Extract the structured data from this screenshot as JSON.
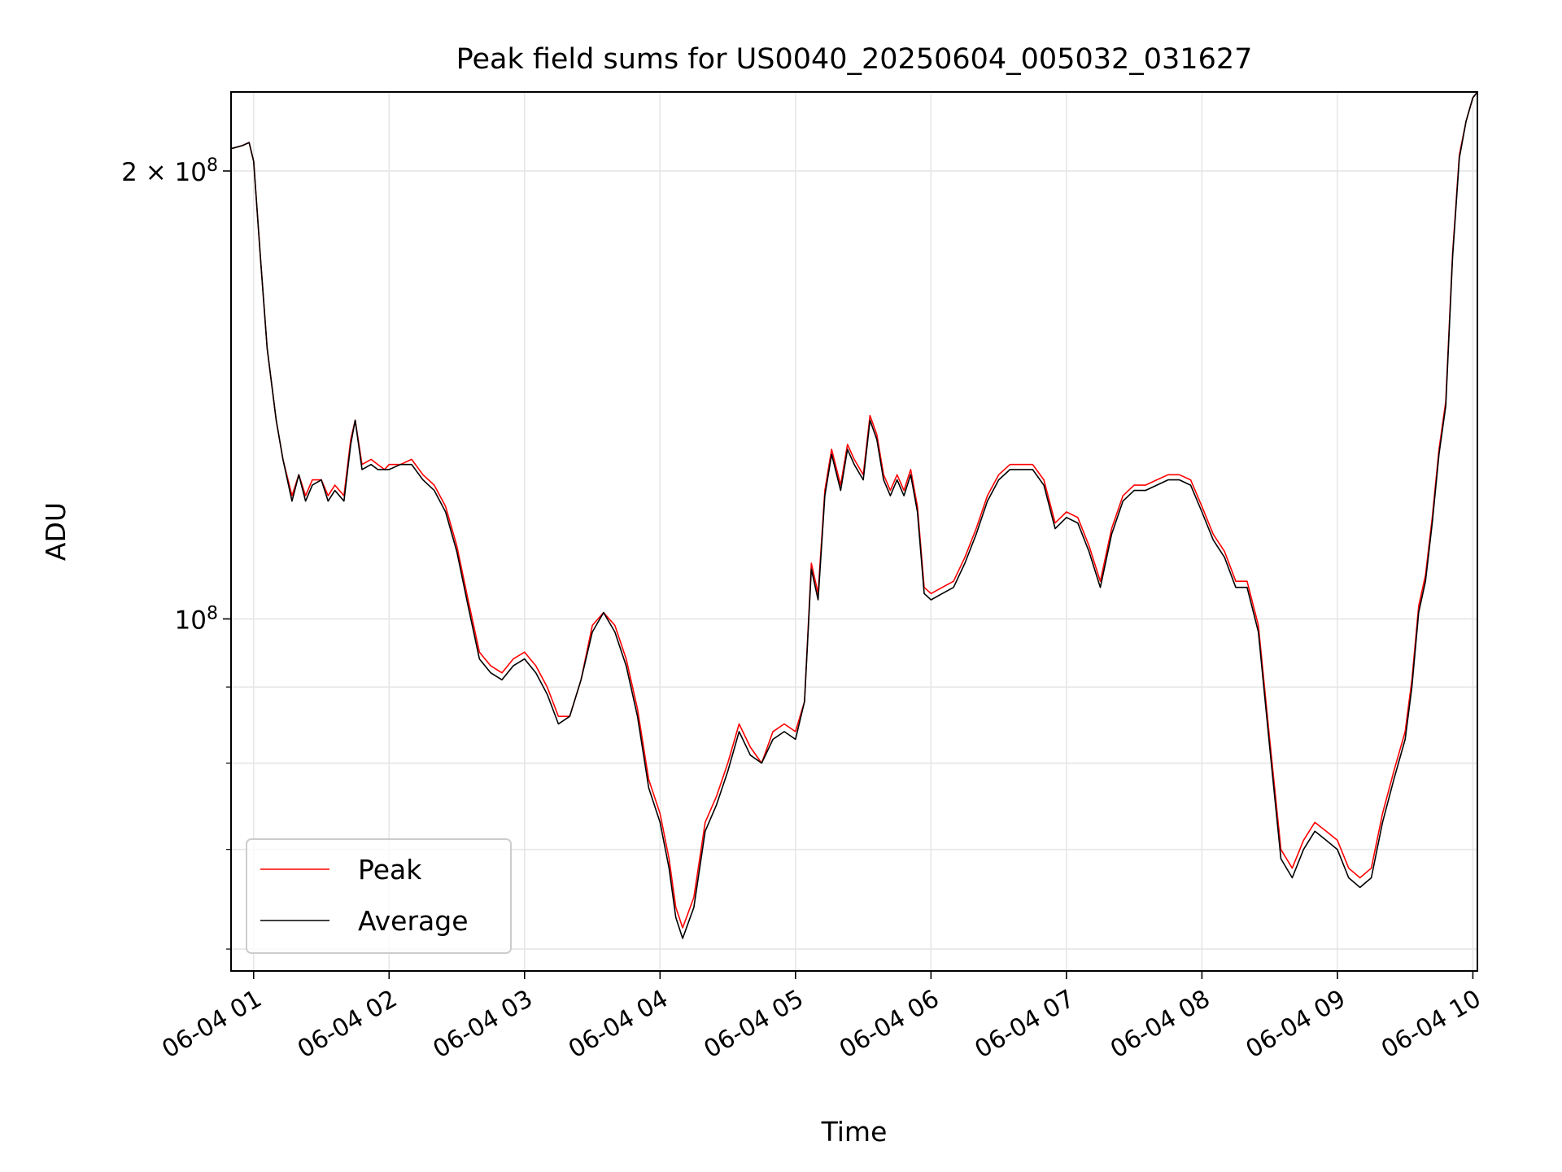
{
  "chart_data": {
    "type": "line",
    "title": "Peak field sums for US0040_20250604_005032_031627",
    "xlabel": "Time",
    "ylabel": "ADU",
    "y_scale": "log",
    "ylim": [
      58000000,
      226000000
    ],
    "xlim": [
      "06-04 00:50",
      "06-04 10:02"
    ],
    "grid": true,
    "legend_position": "lower-left",
    "x_ticks": [
      "06-04 01",
      "06-04 02",
      "06-04 03",
      "06-04 04",
      "06-04 05",
      "06-04 06",
      "06-04 07",
      "06-04 08",
      "06-04 09",
      "06-04 10"
    ],
    "y_tick_labels": [
      {
        "value": 200000000,
        "label": "2 × 10^8"
      },
      {
        "value": 100000000,
        "label": "10^8"
      }
    ],
    "y_minor_ticks": [
      60000000,
      70000000,
      80000000,
      90000000
    ],
    "series": [
      {
        "name": "Peak",
        "color": "#ff0000",
        "x": [
          "06-04 00:50",
          "06-04 00:55",
          "06-04 00:58",
          "06-04 01:00",
          "06-04 01:03",
          "06-04 01:06",
          "06-04 01:10",
          "06-04 01:13",
          "06-04 01:17",
          "06-04 01:20",
          "06-04 01:23",
          "06-04 01:26",
          "06-04 01:30",
          "06-04 01:33",
          "06-04 01:36",
          "06-04 01:40",
          "06-04 01:43",
          "06-04 01:45",
          "06-04 01:48",
          "06-04 01:52",
          "06-04 01:55",
          "06-04 01:58",
          "06-04 02:00",
          "06-04 02:05",
          "06-04 02:10",
          "06-04 02:15",
          "06-04 02:20",
          "06-04 02:25",
          "06-04 02:30",
          "06-04 02:35",
          "06-04 02:40",
          "06-04 02:45",
          "06-04 02:50",
          "06-04 02:55",
          "06-04 03:00",
          "06-04 03:05",
          "06-04 03:10",
          "06-04 03:15",
          "06-04 03:20",
          "06-04 03:25",
          "06-04 03:30",
          "06-04 03:35",
          "06-04 03:40",
          "06-04 03:45",
          "06-04 03:50",
          "06-04 03:55",
          "06-04 04:00",
          "06-04 04:04",
          "06-04 04:07",
          "06-04 04:10",
          "06-04 04:15",
          "06-04 04:20",
          "06-04 04:25",
          "06-04 04:30",
          "06-04 04:35",
          "06-04 04:40",
          "06-04 04:45",
          "06-04 04:50",
          "06-04 04:55",
          "06-04 05:00",
          "06-04 05:04",
          "06-04 05:07",
          "06-04 05:10",
          "06-04 05:13",
          "06-04 05:16",
          "06-04 05:20",
          "06-04 05:23",
          "06-04 05:26",
          "06-04 05:30",
          "06-04 05:33",
          "06-04 05:36",
          "06-04 05:39",
          "06-04 05:42",
          "06-04 05:45",
          "06-04 05:48",
          "06-04 05:51",
          "06-04 05:54",
          "06-04 05:57",
          "06-04 06:00",
          "06-04 06:05",
          "06-04 06:10",
          "06-04 06:15",
          "06-04 06:20",
          "06-04 06:25",
          "06-04 06:30",
          "06-04 06:35",
          "06-04 06:40",
          "06-04 06:45",
          "06-04 06:50",
          "06-04 06:55",
          "06-04 07:00",
          "06-04 07:05",
          "06-04 07:10",
          "06-04 07:15",
          "06-04 07:20",
          "06-04 07:25",
          "06-04 07:30",
          "06-04 07:35",
          "06-04 07:40",
          "06-04 07:45",
          "06-04 07:50",
          "06-04 07:55",
          "06-04 08:00",
          "06-04 08:05",
          "06-04 08:10",
          "06-04 08:15",
          "06-04 08:20",
          "06-04 08:25",
          "06-04 08:30",
          "06-04 08:35",
          "06-04 08:40",
          "06-04 08:45",
          "06-04 08:50",
          "06-04 08:55",
          "06-04 09:00",
          "06-04 09:05",
          "06-04 09:10",
          "06-04 09:15",
          "06-04 09:20",
          "06-04 09:25",
          "06-04 09:30",
          "06-04 09:33",
          "06-04 09:36",
          "06-04 09:39",
          "06-04 09:42",
          "06-04 09:45",
          "06-04 09:48",
          "06-04 09:51",
          "06-04 09:54",
          "06-04 09:57",
          "06-04 10:00",
          "06-04 10:02"
        ],
        "y": [
          207000000,
          208000000,
          209000000,
          203000000,
          175000000,
          152000000,
          136000000,
          128000000,
          121000000,
          125000000,
          121000000,
          124000000,
          124000000,
          121000000,
          123000000,
          121000000,
          132000000,
          136000000,
          127000000,
          128000000,
          127000000,
          126000000,
          127000000,
          127000000,
          128000000,
          125000000,
          123000000,
          119000000,
          112000000,
          103000000,
          95000000,
          93000000,
          92000000,
          94000000,
          95000000,
          93000000,
          90000000,
          86000000,
          86000000,
          91000000,
          99000000,
          101000000,
          99000000,
          94000000,
          87000000,
          78000000,
          74000000,
          69000000,
          64000000,
          62000000,
          65000000,
          73000000,
          76000000,
          80000000,
          85000000,
          82000000,
          80000000,
          84000000,
          85000000,
          84000000,
          88000000,
          109000000,
          104000000,
          122000000,
          130000000,
          123000000,
          131000000,
          128000000,
          125000000,
          137000000,
          133000000,
          125000000,
          122000000,
          125000000,
          122000000,
          126000000,
          119000000,
          105000000,
          104000000,
          105000000,
          106000000,
          110000000,
          115000000,
          121000000,
          125000000,
          127000000,
          127000000,
          127000000,
          124000000,
          116000000,
          118000000,
          117000000,
          112000000,
          106000000,
          115000000,
          121000000,
          123000000,
          123000000,
          124000000,
          125000000,
          125000000,
          124000000,
          119000000,
          114000000,
          111000000,
          106000000,
          106000000,
          99000000,
          83000000,
          70000000,
          68000000,
          71000000,
          73000000,
          72000000,
          71000000,
          68000000,
          67000000,
          68000000,
          74000000,
          79000000,
          84000000,
          91000000,
          102000000,
          107000000,
          117000000,
          130000000,
          140000000,
          176000000,
          205000000,
          216000000,
          224000000,
          226000000
        ]
      },
      {
        "name": "Average",
        "color": "#000000",
        "x": [
          "06-04 00:50",
          "06-04 00:55",
          "06-04 00:58",
          "06-04 01:00",
          "06-04 01:03",
          "06-04 01:06",
          "06-04 01:10",
          "06-04 01:13",
          "06-04 01:17",
          "06-04 01:20",
          "06-04 01:23",
          "06-04 01:26",
          "06-04 01:30",
          "06-04 01:33",
          "06-04 01:36",
          "06-04 01:40",
          "06-04 01:43",
          "06-04 01:45",
          "06-04 01:48",
          "06-04 01:52",
          "06-04 01:55",
          "06-04 01:58",
          "06-04 02:00",
          "06-04 02:05",
          "06-04 02:10",
          "06-04 02:15",
          "06-04 02:20",
          "06-04 02:25",
          "06-04 02:30",
          "06-04 02:35",
          "06-04 02:40",
          "06-04 02:45",
          "06-04 02:50",
          "06-04 02:55",
          "06-04 03:00",
          "06-04 03:05",
          "06-04 03:10",
          "06-04 03:15",
          "06-04 03:20",
          "06-04 03:25",
          "06-04 03:30",
          "06-04 03:35",
          "06-04 03:40",
          "06-04 03:45",
          "06-04 03:50",
          "06-04 03:55",
          "06-04 04:00",
          "06-04 04:04",
          "06-04 04:07",
          "06-04 04:10",
          "06-04 04:15",
          "06-04 04:20",
          "06-04 04:25",
          "06-04 04:30",
          "06-04 04:35",
          "06-04 04:40",
          "06-04 04:45",
          "06-04 04:50",
          "06-04 04:55",
          "06-04 05:00",
          "06-04 05:04",
          "06-04 05:07",
          "06-04 05:10",
          "06-04 05:13",
          "06-04 05:16",
          "06-04 05:20",
          "06-04 05:23",
          "06-04 05:26",
          "06-04 05:30",
          "06-04 05:33",
          "06-04 05:36",
          "06-04 05:39",
          "06-04 05:42",
          "06-04 05:45",
          "06-04 05:48",
          "06-04 05:51",
          "06-04 05:54",
          "06-04 05:57",
          "06-04 06:00",
          "06-04 06:05",
          "06-04 06:10",
          "06-04 06:15",
          "06-04 06:20",
          "06-04 06:25",
          "06-04 06:30",
          "06-04 06:35",
          "06-04 06:40",
          "06-04 06:45",
          "06-04 06:50",
          "06-04 06:55",
          "06-04 07:00",
          "06-04 07:05",
          "06-04 07:10",
          "06-04 07:15",
          "06-04 07:20",
          "06-04 07:25",
          "06-04 07:30",
          "06-04 07:35",
          "06-04 07:40",
          "06-04 07:45",
          "06-04 07:50",
          "06-04 07:55",
          "06-04 08:00",
          "06-04 08:05",
          "06-04 08:10",
          "06-04 08:15",
          "06-04 08:20",
          "06-04 08:25",
          "06-04 08:30",
          "06-04 08:35",
          "06-04 08:40",
          "06-04 08:45",
          "06-04 08:50",
          "06-04 08:55",
          "06-04 09:00",
          "06-04 09:05",
          "06-04 09:10",
          "06-04 09:15",
          "06-04 09:20",
          "06-04 09:25",
          "06-04 09:30",
          "06-04 09:33",
          "06-04 09:36",
          "06-04 09:39",
          "06-04 09:42",
          "06-04 09:45",
          "06-04 09:48",
          "06-04 09:51",
          "06-04 09:54",
          "06-04 09:57",
          "06-04 10:00",
          "06-04 10:02"
        ],
        "y": [
          207000000,
          208000000,
          209000000,
          203000000,
          175000000,
          152000000,
          136000000,
          128000000,
          120000000,
          125000000,
          120000000,
          123000000,
          124000000,
          120000000,
          122000000,
          120000000,
          131000000,
          136000000,
          126000000,
          127000000,
          126000000,
          126000000,
          126000000,
          127000000,
          127000000,
          124000000,
          122000000,
          118000000,
          111000000,
          102000000,
          94000000,
          92000000,
          91000000,
          93000000,
          94000000,
          92000000,
          89000000,
          85000000,
          86000000,
          91000000,
          98000000,
          101000000,
          98000000,
          93000000,
          86000000,
          77000000,
          73000000,
          68000000,
          63000000,
          61000000,
          64000000,
          72000000,
          75000000,
          79000000,
          84000000,
          81000000,
          80000000,
          83000000,
          84000000,
          83000000,
          88000000,
          108000000,
          103000000,
          121000000,
          129000000,
          122000000,
          130000000,
          127000000,
          124000000,
          136000000,
          132000000,
          124000000,
          121000000,
          124000000,
          121000000,
          125000000,
          118000000,
          104000000,
          103000000,
          104000000,
          105000000,
          109000000,
          114000000,
          120000000,
          124000000,
          126000000,
          126000000,
          126000000,
          123000000,
          115000000,
          117000000,
          116000000,
          111000000,
          105000000,
          114000000,
          120000000,
          122000000,
          122000000,
          123000000,
          124000000,
          124000000,
          123000000,
          118000000,
          113000000,
          110000000,
          105000000,
          105000000,
          98000000,
          82000000,
          69000000,
          67000000,
          70000000,
          72000000,
          71000000,
          70000000,
          67000000,
          66000000,
          67000000,
          73000000,
          78000000,
          83000000,
          90000000,
          101000000,
          106000000,
          116000000,
          129000000,
          139000000,
          175000000,
          204000000,
          216000000,
          224000000,
          226000000
        ]
      }
    ]
  }
}
